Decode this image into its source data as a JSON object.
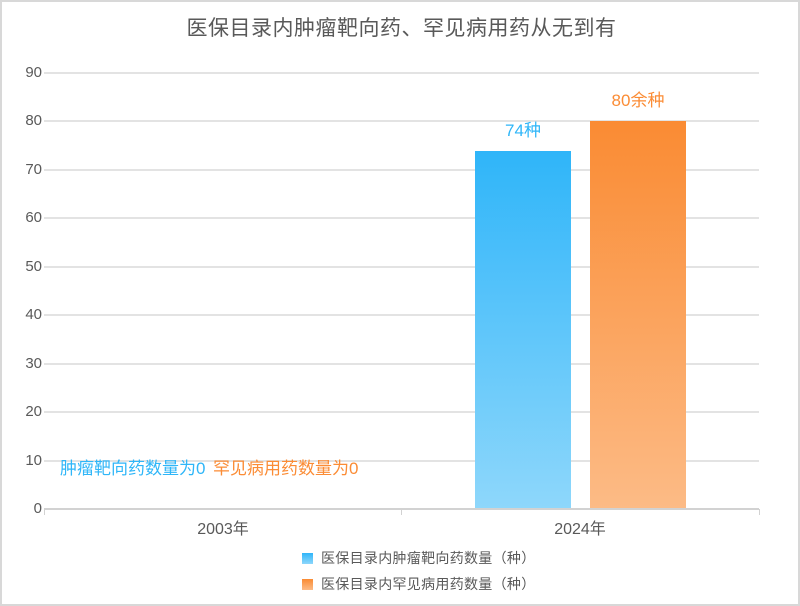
{
  "window": {
    "background": "#ffffff",
    "border_color": "#d8d8d8"
  },
  "chart_data": {
    "type": "bar",
    "title": "医保目录内肿瘤靶向药、罕见病用药从无到有",
    "title_color": "#595959",
    "categories": [
      "2003年",
      "2024年"
    ],
    "series": [
      {
        "name": "医保目录内肿瘤靶向药数量（种）",
        "values": [
          0,
          74
        ],
        "bar_labels": [
          "",
          "74种"
        ],
        "zero_note": "肿瘤靶向药数量为0",
        "color_top": "#2fb5f9",
        "color_bottom": "#8ed7fb",
        "label_color": "#2fb6f8"
      },
      {
        "name": "医保目录内罕见病用药数量（种）",
        "values": [
          0,
          80
        ],
        "bar_labels": [
          "",
          "80余种"
        ],
        "zero_note": "罕见病用药数量为0",
        "color_top": "#fa8b33",
        "color_bottom": "#fcbb86",
        "label_color": "#fb8c35"
      }
    ],
    "ylim": [
      0,
      90
    ],
    "yticks": [
      0,
      10,
      20,
      30,
      40,
      50,
      60,
      70,
      80,
      90
    ],
    "grid": true,
    "legend_position": "bottom",
    "axis_label_color": "#595959",
    "gridline_color": "#e3e3e3",
    "axis_line_color": "#d2d2d2"
  }
}
